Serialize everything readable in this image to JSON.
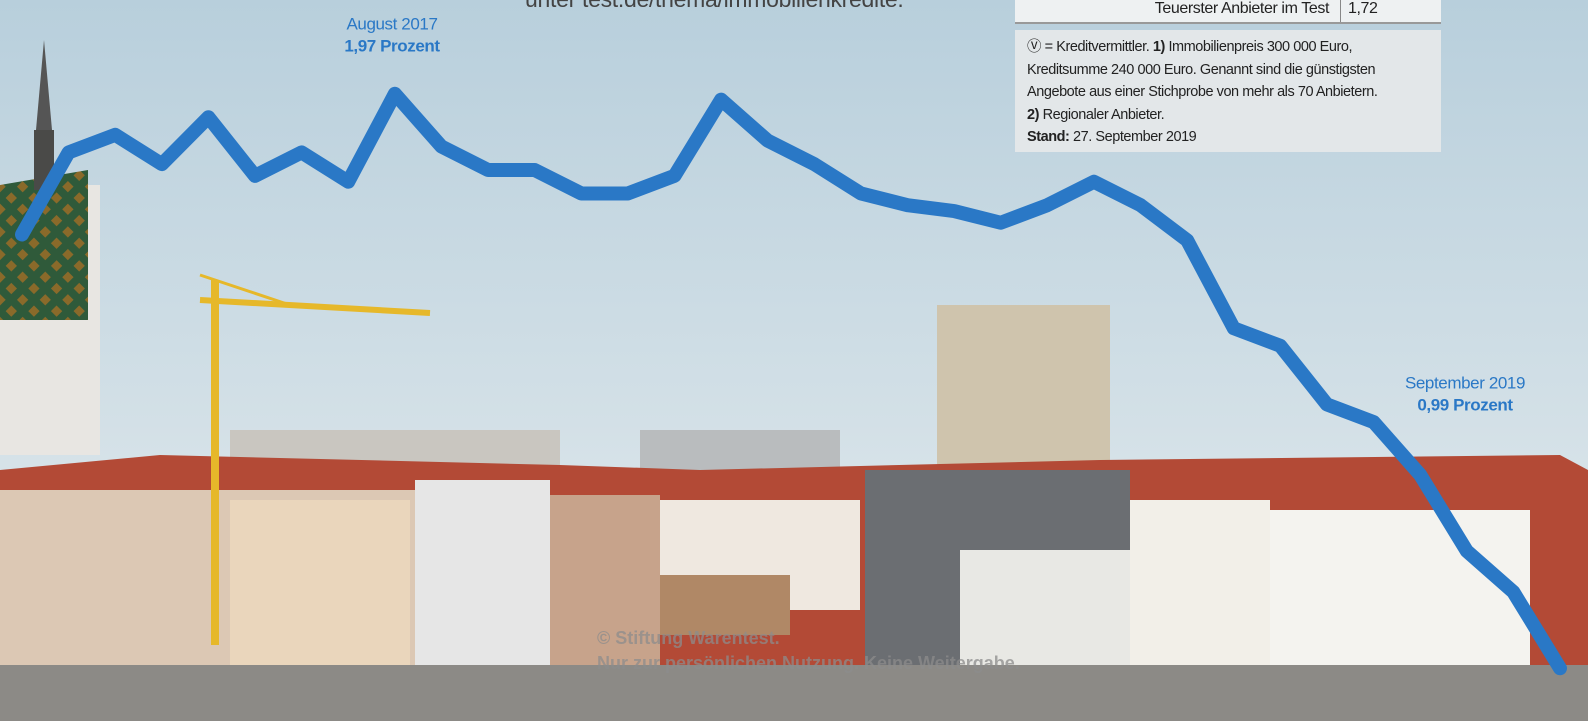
{
  "header_text": "unter test.de/thema/immobilienkredite.",
  "table": {
    "rows": [
      [
        "Teuerster Anbieter im Test",
        "1,72"
      ]
    ]
  },
  "footnote": {
    "lines": [
      [
        {
          "text": "Ⓥ = Kreditvermittler. "
        },
        {
          "text": "1)",
          "bold": true
        },
        {
          "text": " Immobilienpreis 300 000 Euro,"
        }
      ],
      [
        {
          "text": "Kreditsumme 240 000 Euro. Genannt sind die günstigsten"
        }
      ],
      [
        {
          "text": "Angebote aus einer Stichprobe von mehr als 70 Anbietern."
        }
      ],
      [
        {
          "text": "2)",
          "bold": true
        },
        {
          "text": " Regionaler Anbieter."
        }
      ],
      [
        {
          "text": "Stand:",
          "bold": true
        },
        {
          "text": " 27. September 2019"
        }
      ]
    ]
  },
  "chart_data": {
    "type": "line",
    "categories": [
      null,
      null,
      null,
      null,
      null,
      null,
      null,
      null,
      "August 2017",
      null,
      null,
      null,
      null,
      null,
      null,
      null,
      null,
      null,
      null,
      null,
      null,
      null,
      null,
      null,
      null,
      null,
      null,
      null,
      null,
      null,
      null,
      null,
      null,
      "September 2019"
    ],
    "values": [
      1.73,
      1.87,
      1.9,
      1.85,
      1.93,
      1.83,
      1.87,
      1.82,
      1.97,
      1.88,
      1.84,
      1.84,
      1.8,
      1.8,
      1.83,
      1.96,
      1.89,
      1.85,
      1.8,
      1.78,
      1.77,
      1.75,
      1.78,
      1.82,
      1.78,
      1.72,
      1.57,
      1.54,
      1.44,
      1.41,
      1.32,
      1.19,
      1.12,
      0.99
    ],
    "value_labels": [
      null,
      null,
      null,
      null,
      null,
      null,
      null,
      null,
      "1,97 Prozent",
      null,
      null,
      null,
      null,
      null,
      null,
      null,
      null,
      null,
      null,
      null,
      null,
      null,
      null,
      null,
      null,
      null,
      null,
      null,
      null,
      null,
      null,
      null,
      null,
      "0,99 Prozent"
    ],
    "color": "#2a78c6",
    "ylim": [
      0.9,
      2.13
    ]
  },
  "watermark": [
    "© Stiftung Warentest.",
    "Nur zur persönlichen Nutzung. Keine Weitergabe."
  ]
}
